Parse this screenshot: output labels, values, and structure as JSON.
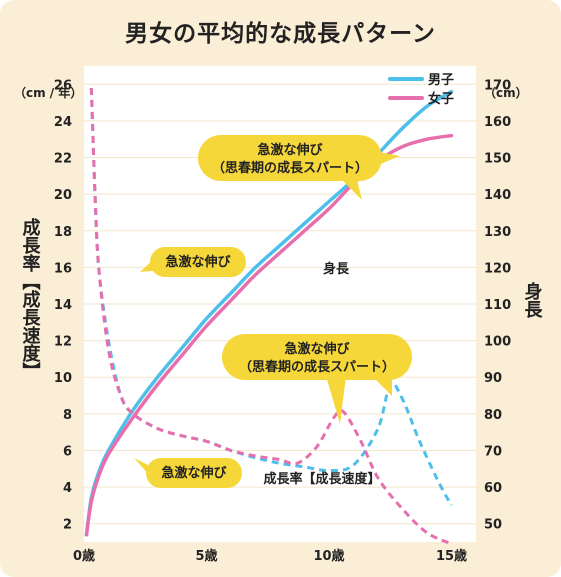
{
  "title": "男女の平均的な成長パターン",
  "chart_data": {
    "type": "line",
    "title": "男女の平均的な成長パターン",
    "x_ticks": [
      "0歳",
      "5歳",
      "10歳",
      "15歳"
    ],
    "xlim": [
      0,
      16
    ],
    "left_axis": {
      "unit": "（cm / 年）",
      "label": "成長率【成長速度】",
      "ticks": [
        "2",
        "4",
        "6",
        "8",
        "10",
        "12",
        "14",
        "16",
        "18",
        "20",
        "22",
        "24",
        "26"
      ],
      "ylim": [
        1,
        27
      ]
    },
    "right_axis": {
      "unit": "（cm）",
      "label": "身長",
      "ticks": [
        "50",
        "60",
        "70",
        "80",
        "90",
        "100",
        "110",
        "120",
        "130",
        "140",
        "150",
        "160",
        "170"
      ],
      "ylim": [
        45,
        175
      ]
    },
    "legend": [
      {
        "name": "男子",
        "color": "#4cbfea"
      },
      {
        "name": "女子",
        "color": "#e86fae"
      }
    ],
    "series": [
      {
        "name": "男子",
        "kind": "height",
        "axis": "right",
        "style": "solid",
        "color": "#4cbfea",
        "points": [
          [
            0.1,
            47
          ],
          [
            0.3,
            57
          ],
          [
            0.6,
            64
          ],
          [
            1,
            70
          ],
          [
            2,
            81
          ],
          [
            3,
            90
          ],
          [
            4,
            98
          ],
          [
            5,
            106
          ],
          [
            6,
            113
          ],
          [
            7,
            120
          ],
          [
            8,
            126
          ],
          [
            9,
            132
          ],
          [
            10,
            138
          ],
          [
            11,
            144
          ],
          [
            12,
            151
          ],
          [
            13,
            158
          ],
          [
            14,
            164
          ],
          [
            15,
            168
          ]
        ]
      },
      {
        "name": "女子",
        "kind": "height",
        "axis": "right",
        "style": "solid",
        "color": "#e86fae",
        "points": [
          [
            0.1,
            47
          ],
          [
            0.3,
            56
          ],
          [
            0.6,
            63
          ],
          [
            1,
            69
          ],
          [
            2,
            79
          ],
          [
            3,
            88
          ],
          [
            4,
            96
          ],
          [
            5,
            104
          ],
          [
            6,
            111
          ],
          [
            7,
            118
          ],
          [
            8,
            124
          ],
          [
            9,
            130
          ],
          [
            10,
            136
          ],
          [
            11,
            143
          ],
          [
            12,
            149
          ],
          [
            13,
            153
          ],
          [
            14,
            155
          ],
          [
            15,
            156
          ]
        ]
      },
      {
        "name": "男子",
        "kind": "velocity",
        "axis": "left",
        "style": "dashed",
        "color": "#4cbfea",
        "points": [
          [
            0.3,
            25.8
          ],
          [
            0.45,
            20
          ],
          [
            0.6,
            16
          ],
          [
            1,
            12
          ],
          [
            1.5,
            9
          ],
          [
            2,
            8
          ],
          [
            3,
            7.2
          ],
          [
            4,
            6.8
          ],
          [
            5,
            6.5
          ],
          [
            6,
            6
          ],
          [
            7,
            5.6
          ],
          [
            8,
            5.3
          ],
          [
            9,
            5.1
          ],
          [
            10,
            4.9
          ],
          [
            11,
            5.2
          ],
          [
            12,
            7.2
          ],
          [
            12.5,
            9.6
          ],
          [
            13,
            8.8
          ],
          [
            13.7,
            6.5
          ],
          [
            14.5,
            4.2
          ],
          [
            15,
            3
          ]
        ]
      },
      {
        "name": "女子",
        "kind": "velocity",
        "axis": "left",
        "style": "dashed",
        "color": "#e86fae",
        "points": [
          [
            0.3,
            25.8
          ],
          [
            0.45,
            20
          ],
          [
            0.6,
            16
          ],
          [
            1,
            11.5
          ],
          [
            1.5,
            9
          ],
          [
            2,
            8
          ],
          [
            3,
            7.2
          ],
          [
            4,
            6.8
          ],
          [
            5,
            6.5
          ],
          [
            6,
            6
          ],
          [
            7,
            5.7
          ],
          [
            8,
            5.5
          ],
          [
            8.7,
            5.3
          ],
          [
            9.5,
            6.2
          ],
          [
            10.2,
            7.8
          ],
          [
            10.6,
            8.1
          ],
          [
            11.3,
            6.5
          ],
          [
            12,
            4.5
          ],
          [
            13,
            2.8
          ],
          [
            14,
            1.5
          ],
          [
            15,
            0.9
          ]
        ]
      }
    ],
    "annotations": [
      {
        "lines": [
          "急激な伸び",
          "（思春期の成長スパート）"
        ],
        "target": "height"
      },
      {
        "lines": [
          "急激な伸び"
        ],
        "target": "velocity-infant"
      },
      {
        "lines": [
          "身長"
        ],
        "target": "height-label"
      },
      {
        "lines": [
          "急激な伸び",
          "（思春期の成長スパート）"
        ],
        "target": "velocity-puberty"
      },
      {
        "lines": [
          "急激な伸び"
        ],
        "target": "height-infant"
      },
      {
        "lines": [
          "成長率【成長速度】"
        ],
        "target": "velocity-label"
      }
    ]
  }
}
